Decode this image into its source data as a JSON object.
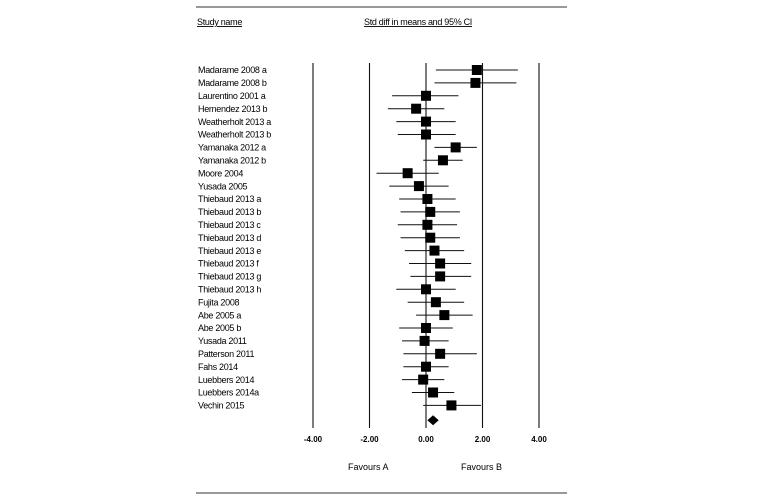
{
  "headers": {
    "study_name": "Study name",
    "effect": "Std diff in means and 95% CI"
  },
  "favours": {
    "left": "Favours A",
    "right": "Favours B"
  },
  "chart_data": {
    "type": "forest",
    "xlim": [
      -4,
      4
    ],
    "ticks": [
      -4,
      -2,
      0,
      2,
      4
    ],
    "tick_labels": [
      "-4.00",
      "-2.00",
      "0.00",
      "2.00",
      "4.00"
    ],
    "reference_lines": [
      -4,
      -2,
      0,
      2,
      4
    ],
    "studies": [
      {
        "name": "Madarame 2008 a",
        "est": 1.8,
        "lo": 0.35,
        "hi": 3.25
      },
      {
        "name": "Madarame 2008 b",
        "est": 1.75,
        "lo": 0.3,
        "hi": 3.2
      },
      {
        "name": "Laurentino 2001 a",
        "est": 0.0,
        "lo": -1.2,
        "hi": 1.15
      },
      {
        "name": "Hernendez 2013 b",
        "est": -0.35,
        "lo": -1.35,
        "hi": 0.65
      },
      {
        "name": "Weatherholt 2013 a",
        "est": 0.0,
        "lo": -1.05,
        "hi": 1.05
      },
      {
        "name": "Weatherholt 2013 b",
        "est": 0.0,
        "lo": -1.0,
        "hi": 1.05
      },
      {
        "name": "Yamanaka 2012 a",
        "est": 1.05,
        "lo": 0.3,
        "hi": 1.8
      },
      {
        "name": "Yamanaka 2012 b",
        "est": 0.6,
        "lo": -0.1,
        "hi": 1.3
      },
      {
        "name": "Moore 2004",
        "est": -0.65,
        "lo": -1.75,
        "hi": 0.45
      },
      {
        "name": "Yusada 2005",
        "est": -0.25,
        "lo": -1.3,
        "hi": 0.8
      },
      {
        "name": "Thiebaud 2013 a",
        "est": 0.05,
        "lo": -0.95,
        "hi": 1.05
      },
      {
        "name": "Thiebaud 2013 b",
        "est": 0.15,
        "lo": -0.9,
        "hi": 1.2
      },
      {
        "name": "Thiebaud 2013 c",
        "est": 0.05,
        "lo": -1.0,
        "hi": 1.1
      },
      {
        "name": "Thiebaud 2013 d",
        "est": 0.15,
        "lo": -0.9,
        "hi": 1.2
      },
      {
        "name": "Thiebaud 2013 e",
        "est": 0.3,
        "lo": -0.75,
        "hi": 1.35
      },
      {
        "name": "Thiebaud 2013 f",
        "est": 0.5,
        "lo": -0.6,
        "hi": 1.6
      },
      {
        "name": "Thiebaud 2013 g",
        "est": 0.5,
        "lo": -0.55,
        "hi": 1.6
      },
      {
        "name": "Thiebaud 2013 h",
        "est": 0.0,
        "lo": -1.05,
        "hi": 1.05
      },
      {
        "name": "Fujita 2008",
        "est": 0.35,
        "lo": -0.65,
        "hi": 1.35
      },
      {
        "name": "Abe 2005 a",
        "est": 0.65,
        "lo": -0.35,
        "hi": 1.65
      },
      {
        "name": "Abe 2005 b",
        "est": 0.0,
        "lo": -0.95,
        "hi": 0.95
      },
      {
        "name": "Yusada 2011",
        "est": -0.05,
        "lo": -0.85,
        "hi": 0.8
      },
      {
        "name": "Patterson 2011",
        "est": 0.5,
        "lo": -0.8,
        "hi": 1.8
      },
      {
        "name": "Fahs 2014",
        "est": 0.0,
        "lo": -0.8,
        "hi": 0.8
      },
      {
        "name": "Luebbers 2014",
        "est": -0.1,
        "lo": -0.85,
        "hi": 0.65
      },
      {
        "name": "Luebbers 2014a",
        "est": 0.25,
        "lo": -0.5,
        "hi": 1.0
      },
      {
        "name": "Vechin 2015",
        "est": 0.9,
        "lo": -0.1,
        "hi": 1.95
      }
    ],
    "summary": {
      "est": 0.25,
      "lo": 0.05,
      "hi": 0.45
    }
  }
}
